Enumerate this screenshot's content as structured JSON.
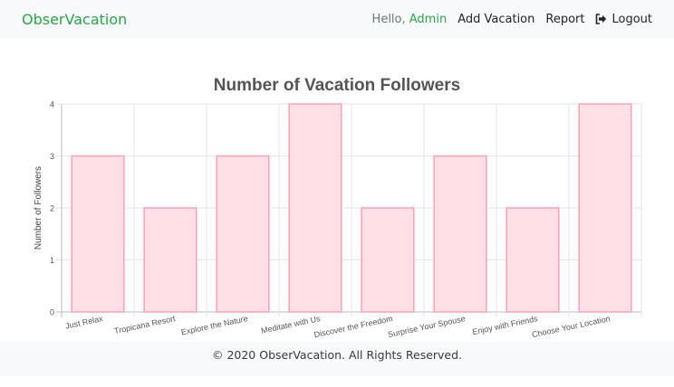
{
  "navbar": {
    "brand": "ObserVacation",
    "hello_prefix": "Hello, ",
    "user": "Admin",
    "add_vacation": "Add Vacation",
    "report": "Report",
    "logout": "Logout",
    "logout_icon": "sign-out-icon"
  },
  "footer": {
    "text": "© 2020 ObserVacation. All Rights Reserved."
  },
  "colors": {
    "brand": "#28a745",
    "bar_fill": "#ffe0e6",
    "bar_border": "#ff9fb6"
  },
  "chart_data": {
    "type": "bar",
    "title": "Number of Vacation Followers",
    "ylabel": "Number of Followers",
    "xlabel": "",
    "categories": [
      "Just Relax",
      "Tropicana Resort",
      "Explore the Nature",
      "Meditate with Us",
      "Discover the Freedom",
      "Surprise Your Spouse",
      "Enjoy with Friends",
      "Choose Your Location"
    ],
    "values": [
      3,
      2,
      3,
      4,
      2,
      3,
      2,
      4
    ],
    "ylim": [
      0,
      4
    ],
    "yticks": [
      0,
      1,
      2,
      3,
      4
    ],
    "grid": true
  }
}
